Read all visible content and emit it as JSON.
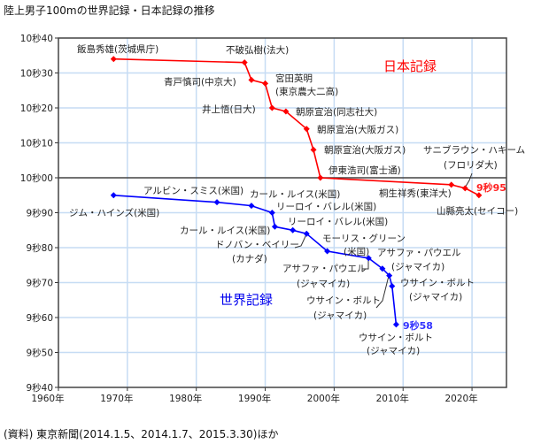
{
  "chart_data": {
    "type": "line",
    "title": "陸上男子100mの世界記録・日本記録の推移",
    "source": "(資料) 東京新聞(2014.1.5、2014.1.7、2015.3.30)ほか",
    "xlim": [
      1960,
      2025
    ],
    "ylim": [
      9.4,
      10.4
    ],
    "grid": true,
    "x_ticks": [
      1960,
      1970,
      1980,
      1990,
      2000,
      2010,
      2020
    ],
    "x_tick_labels": [
      "1960年",
      "1970年",
      "1980年",
      "1990年",
      "2000年",
      "2010年",
      "2020年"
    ],
    "y_ticks": [
      10.4,
      10.3,
      10.2,
      10.1,
      10.0,
      9.9,
      9.8,
      9.7,
      9.6,
      9.5,
      9.4
    ],
    "y_tick_labels": [
      "10秒40",
      "10秒30",
      "10秒20",
      "10秒10",
      "10秒00",
      "9秒90",
      "9秒80",
      "9秒70",
      "9秒60",
      "9秒50",
      "9秒40"
    ],
    "series": [
      {
        "name": "日本記録",
        "color": "#ff0000",
        "end_label": "9秒95",
        "points": [
          {
            "x": 1968,
            "y": 10.34,
            "label": [
              "飯島秀雄(茨城県庁)"
            ]
          },
          {
            "x": 1987,
            "y": 10.33,
            "label": [
              "不破弘樹(法大)"
            ]
          },
          {
            "x": 1988,
            "y": 10.28,
            "label": [
              "青戸慎司(中京大)"
            ]
          },
          {
            "x": 1990,
            "y": 10.27,
            "label": [
              "宮田英明",
              "(東京農大二高)"
            ]
          },
          {
            "x": 1991,
            "y": 10.2,
            "label": [
              "井上悟(日大)"
            ]
          },
          {
            "x": 1993,
            "y": 10.19,
            "label": [
              "朝原宣治(同志社大)"
            ]
          },
          {
            "x": 1996,
            "y": 10.14,
            "label": [
              "朝原宣治(大阪ガス)"
            ]
          },
          {
            "x": 1997,
            "y": 10.08,
            "label": [
              "朝原宣治(大阪ガス)"
            ]
          },
          {
            "x": 1998,
            "y": 10.0,
            "label": [
              "伊東浩司(富士通)"
            ]
          },
          {
            "x": 2017,
            "y": 9.98,
            "label": [
              "桐生祥秀(東洋大)"
            ]
          },
          {
            "x": 2019,
            "y": 9.97,
            "label": [
              "サニブラウン・ハキーム",
              "(フロリダ大)"
            ]
          },
          {
            "x": 2021,
            "y": 9.95,
            "label": [
              "山縣亮太(セイコー)"
            ]
          }
        ]
      },
      {
        "name": "世界記録",
        "color": "#0000ff",
        "end_label": "9秒58",
        "points": [
          {
            "x": 1968,
            "y": 9.95,
            "label": [
              "ジム・ハインズ(米国)"
            ]
          },
          {
            "x": 1983,
            "y": 9.93,
            "label": [
              "アルビン・スミス(米国)"
            ]
          },
          {
            "x": 1988,
            "y": 9.92,
            "label": [
              "カール・ルイス(米国)"
            ]
          },
          {
            "x": 1991,
            "y": 9.9,
            "label": [
              "リーロイ・バレル(米国)"
            ]
          },
          {
            "x": 1991.4,
            "y": 9.86,
            "label": [
              "カール・ルイス(米国)"
            ]
          },
          {
            "x": 1994,
            "y": 9.85,
            "label": [
              "リーロイ・バレル(米国)"
            ]
          },
          {
            "x": 1996,
            "y": 9.84,
            "label": [
              "ドノバン・ベイリー",
              "(カナダ)"
            ]
          },
          {
            "x": 1999,
            "y": 9.79,
            "label": [
              "モーリス・グリーン",
              "(米国)"
            ]
          },
          {
            "x": 2005,
            "y": 9.77,
            "label": [
              "アサファ・パウエル",
              "(ジャマイカ)"
            ]
          },
          {
            "x": 2007,
            "y": 9.74,
            "label": [
              "アサファ・パウエル",
              "(ジャマイカ)"
            ]
          },
          {
            "x": 2008,
            "y": 9.72,
            "label": [
              "ウサイン・ボルト",
              "(ジャマイカ)"
            ]
          },
          {
            "x": 2008.4,
            "y": 9.69,
            "label": [
              "ウサイン・ボルト",
              "(ジャマイカ)"
            ]
          },
          {
            "x": 2009,
            "y": 9.58,
            "label": [
              "ウサイン・ボルト",
              "(ジャマイカ)"
            ]
          }
        ]
      }
    ]
  }
}
